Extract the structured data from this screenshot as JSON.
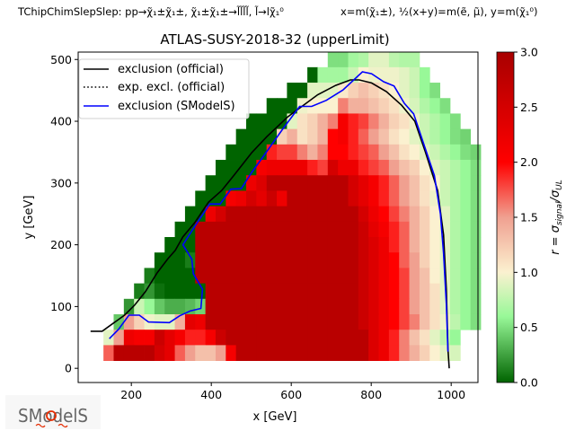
{
  "chart_data": {
    "type": "heatmap",
    "topology_label": "TChipChimSlepSlep: pp→χ̃₁±χ̃₁±, χ̃₁±χ̃₁±→l̃l̃l̃l̃, l̃→lχ̃₁⁰",
    "mass_label": "x=m(χ̃₁±), ½(x+y)=m(ẽ, μ̃), y=m(χ̃₁⁰)",
    "title": "ATLAS-SUSY-2018-32 (upperLimit)",
    "xlabel": "x [GeV]",
    "ylabel": "y [GeV]",
    "colorbar_label": {
      "main": "r = σ",
      "sub1": "signal",
      "mid": "/σ",
      "sub2": "UL"
    },
    "xlim": [
      67,
      1067
    ],
    "ylim": [
      -23,
      512
    ],
    "x_ticks": [
      "200",
      "400",
      "600",
      "800",
      "1000"
    ],
    "y_ticks": [
      "0",
      "100",
      "200",
      "300",
      "400",
      "500"
    ],
    "colorbar_ticks": [
      "0.0",
      "0.5",
      "1.0",
      "1.5",
      "2.0",
      "2.5",
      "3.0"
    ],
    "color_range": [
      0,
      3
    ],
    "colormap": [
      {
        "v": 0.0,
        "color": "#006400"
      },
      {
        "v": 0.6,
        "color": "#98f898"
      },
      {
        "v": 1.0,
        "color": "#fbf1d0"
      },
      {
        "v": 1.5,
        "color": "#f0a090"
      },
      {
        "v": 2.0,
        "color": "#ff0000"
      },
      {
        "v": 3.0,
        "color": "#a80000"
      }
    ],
    "grid": {
      "x_first": 143,
      "x_step": 25.5,
      "y_step": 25,
      "rows": [
        {
          "y": 500,
          "col_start": 22,
          "values": [
            0.5,
            0.5,
            0.65,
            0.7,
            0.9,
            0.9,
            0.75,
            0.7,
            0.7
          ]
        },
        {
          "y": 475,
          "col_start": 20,
          "values": [
            0,
            0.65,
            0.65,
            0.65,
            0.8,
            1.0,
            0.95,
            0.95,
            0.95,
            0.9,
            0.8,
            0.6
          ]
        },
        {
          "y": 450,
          "col_start": 18,
          "values": [
            0,
            0,
            0.9,
            0.9,
            0.9,
            1.05,
            1.2,
            1.3,
            1.2,
            1.1,
            1.0,
            0.9,
            0.8,
            0.6,
            0.5
          ]
        },
        {
          "y": 425,
          "col_start": 16,
          "values": [
            0,
            0,
            0,
            0.95,
            1.0,
            1.0,
            1.0,
            1.6,
            1.4,
            1.4,
            1.3,
            1.2,
            1.1,
            0.95,
            0.85,
            0.7,
            0.6,
            0.5
          ]
        },
        {
          "y": 400,
          "col_start": 14,
          "values": [
            0,
            0,
            0,
            0,
            0.9,
            1.1,
            1.2,
            1.4,
            1.6,
            2.1,
            1.9,
            1.8,
            1.6,
            1.4,
            1.2,
            1.1,
            0.95,
            0.8,
            0.7,
            0.6,
            0.5
          ]
        },
        {
          "y": 375,
          "col_start": 13,
          "values": [
            0,
            0,
            0,
            0,
            1.2,
            1.4,
            1.1,
            1.2,
            1.4,
            2.0,
            2.1,
            1.9,
            1.7,
            1.5,
            1.3,
            1.1,
            1.0,
            0.9,
            0.8,
            0.7,
            0.6,
            0.5,
            0.45
          ]
        },
        {
          "y": 350,
          "col_start": 12,
          "values": [
            0,
            0,
            0,
            0,
            1.9,
            1.8,
            1.8,
            1.6,
            1.4,
            1.6,
            2.0,
            2.0,
            1.9,
            1.8,
            1.7,
            1.5,
            1.3,
            1.1,
            1.0,
            0.9,
            0.8,
            0.7,
            0.6,
            0.5,
            0.45
          ]
        },
        {
          "y": 325,
          "col_start": 11,
          "values": [
            0,
            0,
            0,
            0,
            2.1,
            2.2,
            2.2,
            2.2,
            2.2,
            1.9,
            1.8,
            2.5,
            2.2,
            2.2,
            1.9,
            1.8,
            1.7,
            1.5,
            1.3,
            1.2,
            1.0,
            0.9,
            0.8,
            0.7,
            0.6,
            0.5
          ]
        },
        {
          "y": 300,
          "col_start": 10,
          "values": [
            0,
            0,
            0,
            0,
            2.2,
            2.4,
            2.8,
            2.8,
            2.8,
            2.8,
            2.8,
            2.8,
            2.8,
            2.8,
            2.5,
            2.3,
            2.1,
            1.9,
            1.7,
            1.5,
            1.3,
            1.1,
            1.0,
            0.8,
            0.7,
            0.6,
            0.5
          ]
        },
        {
          "y": 275,
          "col_start": 9,
          "values": [
            0,
            0,
            0,
            2.1,
            2.2,
            2.5,
            2.3,
            2.6,
            2.2,
            2.8,
            2.8,
            2.8,
            2.8,
            2.8,
            2.8,
            2.5,
            2.3,
            2.1,
            1.9,
            1.7,
            1.5,
            1.3,
            1.1,
            0.95,
            0.8,
            0.7,
            0.6,
            0.5
          ]
        },
        {
          "y": 250,
          "col_start": 8,
          "values": [
            0,
            0,
            2.2,
            2.5,
            2.8,
            2.8,
            2.8,
            2.8,
            2.8,
            2.8,
            2.8,
            2.8,
            2.8,
            2.8,
            2.8,
            2.8,
            2.8,
            2.5,
            2.2,
            2.0,
            1.8,
            1.6,
            1.4,
            1.2,
            1.0,
            0.9,
            0.7,
            0.6,
            0.5
          ]
        },
        {
          "y": 225,
          "col_start": 7,
          "values": [
            0,
            0,
            2.8,
            2.8,
            2.8,
            2.8,
            2.8,
            2.8,
            2.8,
            2.8,
            2.8,
            2.8,
            2.8,
            2.8,
            2.8,
            2.8,
            2.8,
            2.8,
            2.6,
            2.3,
            2.1,
            1.9,
            1.7,
            1.4,
            1.2,
            1.0,
            0.9,
            0.7,
            0.6,
            0.5
          ]
        },
        {
          "y": 200,
          "col_start": 6,
          "values": [
            0,
            0,
            0,
            2.8,
            2.8,
            2.8,
            2.8,
            2.8,
            2.8,
            2.8,
            2.8,
            2.8,
            2.8,
            2.8,
            2.8,
            2.8,
            2.8,
            2.8,
            2.8,
            2.6,
            2.4,
            2.2,
            1.9,
            1.7,
            1.4,
            1.2,
            1.0,
            0.9,
            0.7,
            0.6,
            0.5
          ]
        },
        {
          "y": 175,
          "col_start": 5,
          "values": [
            0,
            0,
            0,
            0.1,
            2.8,
            2.8,
            2.8,
            2.8,
            2.8,
            2.8,
            2.8,
            2.8,
            2.8,
            2.8,
            2.8,
            2.8,
            2.8,
            2.8,
            2.8,
            2.8,
            2.6,
            2.4,
            2.2,
            2.0,
            1.7,
            1.5,
            1.2,
            1.0,
            0.9,
            0.7,
            0.6,
            0.5
          ]
        },
        {
          "y": 150,
          "col_start": 4,
          "values": [
            0.1,
            0,
            0,
            0,
            0,
            2.8,
            2.8,
            2.8,
            2.8,
            2.8,
            2.8,
            2.8,
            2.8,
            2.8,
            2.8,
            2.8,
            2.8,
            2.8,
            2.8,
            2.8,
            2.8,
            2.6,
            2.4,
            2.2,
            2.0,
            1.8,
            1.5,
            1.3,
            1.0,
            0.9,
            0.7,
            0.6,
            0.5
          ]
        },
        {
          "y": 125,
          "col_start": 3,
          "values": [
            0.1,
            0.2,
            0.05,
            0,
            0,
            0,
            0,
            2.8,
            2.8,
            2.8,
            2.8,
            2.8,
            2.8,
            2.8,
            2.8,
            2.8,
            2.8,
            2.8,
            2.8,
            2.8,
            2.8,
            2.8,
            2.6,
            2.4,
            2.2,
            2.0,
            1.8,
            1.5,
            1.3,
            1.1,
            0.9,
            0.7,
            0.6,
            0.5
          ]
        },
        {
          "y": 100,
          "col_start": 2,
          "values": [
            0.2,
            0.8,
            0.6,
            0.4,
            0.3,
            0.3,
            0.35,
            0.45,
            2.8,
            2.8,
            2.8,
            2.8,
            2.8,
            2.8,
            2.8,
            2.8,
            2.8,
            2.8,
            2.8,
            2.8,
            2.8,
            2.8,
            2.8,
            2.6,
            2.4,
            2.2,
            2.0,
            1.8,
            1.5,
            1.3,
            1.1,
            0.9,
            0.7,
            0.6,
            0.5
          ]
        },
        {
          "y": 75,
          "col_start": 1,
          "values": [
            0.4,
            1.5,
            1.2,
            0.95,
            0.9,
            0.9,
            1.4,
            2.3,
            2.2,
            2.8,
            2.8,
            2.8,
            2.8,
            2.8,
            2.8,
            2.8,
            2.8,
            2.8,
            2.8,
            2.8,
            2.8,
            2.8,
            2.8,
            2.8,
            2.6,
            2.4,
            2.2,
            2.0,
            1.8,
            1.6,
            1.3,
            1.1,
            0.95,
            0.75,
            0.6,
            0.5
          ]
        },
        {
          "y": 50,
          "col_start": 0,
          "values": [
            0.9,
            1.5,
            2.2,
            2.1,
            2.1,
            2.6,
            2.3,
            2.1,
            1.9,
            1.9,
            2.1,
            2.6,
            2.8,
            2.8,
            2.8,
            2.8,
            2.8,
            2.8,
            2.8,
            2.8,
            2.8,
            2.8,
            2.8,
            2.8,
            2.8,
            2.8,
            2.4,
            2.2,
            1.9,
            1.6,
            1.3,
            1.1,
            0.9,
            0.75,
            0.6
          ]
        },
        {
          "y": 25,
          "col_start": 0,
          "values": [
            1.7,
            2.8,
            2.8,
            2.8,
            2.8,
            2.5,
            2.3,
            1.7,
            1.5,
            1.3,
            1.3,
            1.5,
            2.1,
            2.8,
            2.8,
            2.8,
            2.8,
            2.8,
            2.8,
            2.8,
            2.8,
            2.8,
            2.8,
            2.8,
            2.8,
            2.8,
            2.4,
            2.2,
            1.9,
            1.6,
            1.4,
            1.2,
            1.0,
            0.9,
            0.85
          ]
        }
      ]
    },
    "series": [
      {
        "name": "exclusion (official)",
        "color": "#000000",
        "style": "solid",
        "points": [
          [
            98,
            60
          ],
          [
            127,
            60
          ],
          [
            157,
            74
          ],
          [
            183,
            86
          ],
          [
            208,
            102
          ],
          [
            235,
            124
          ],
          [
            265,
            155
          ],
          [
            291,
            177
          ],
          [
            310,
            191
          ],
          [
            329,
            213
          ],
          [
            359,
            236
          ],
          [
            393,
            269
          ],
          [
            426,
            288
          ],
          [
            456,
            312
          ],
          [
            501,
            349
          ],
          [
            539,
            375
          ],
          [
            591,
            407
          ],
          [
            666,
            443
          ],
          [
            711,
            458
          ],
          [
            748,
            467
          ],
          [
            770,
            467
          ],
          [
            801,
            462
          ],
          [
            838,
            448
          ],
          [
            876,
            426
          ],
          [
            909,
            400
          ],
          [
            935,
            351
          ],
          [
            966,
            288
          ],
          [
            981,
            216
          ],
          [
            988,
            128
          ],
          [
            992,
            31
          ],
          [
            995,
            0
          ]
        ]
      },
      {
        "name": "exp. excl. (official)",
        "color": "#000000",
        "style": "dotted",
        "points": []
      },
      {
        "name": "exclusion (SModelS)",
        "color": "#0000ff",
        "style": "solid",
        "points": [
          [
            145,
            48
          ],
          [
            168,
            63
          ],
          [
            194,
            86
          ],
          [
            220,
            86
          ],
          [
            243,
            75
          ],
          [
            295,
            74
          ],
          [
            321,
            85
          ],
          [
            348,
            93
          ],
          [
            374,
            97
          ],
          [
            378,
            128
          ],
          [
            355,
            153
          ],
          [
            351,
            177
          ],
          [
            329,
            200
          ],
          [
            359,
            230
          ],
          [
            396,
            266
          ],
          [
            422,
            266
          ],
          [
            449,
            290
          ],
          [
            475,
            291
          ],
          [
            501,
            317
          ],
          [
            531,
            344
          ],
          [
            576,
            385
          ],
          [
            621,
            424
          ],
          [
            651,
            424
          ],
          [
            688,
            434
          ],
          [
            730,
            451
          ],
          [
            778,
            480
          ],
          [
            801,
            477
          ],
          [
            831,
            464
          ],
          [
            857,
            457
          ],
          [
            883,
            429
          ],
          [
            906,
            412
          ],
          [
            935,
            356
          ],
          [
            958,
            312
          ],
          [
            973,
            250
          ],
          [
            981,
            186
          ],
          [
            988,
            104
          ],
          [
            992,
            27
          ]
        ]
      }
    ],
    "legend_placement": "top-left"
  },
  "logo": {
    "text": "SModelS"
  }
}
